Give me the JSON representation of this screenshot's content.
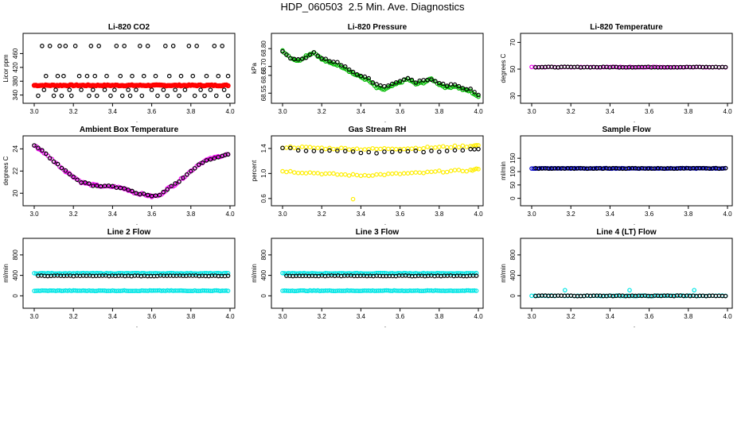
{
  "page_title": "HDP_060503  2.5 Min. Ave. Diagnostics",
  "chart_data": [
    {
      "type": "scatter",
      "title": "Li-820 CO2",
      "ylabel": "Licor ppm",
      "xlim": [
        3.0,
        4.0
      ],
      "ylim": [
        330,
        500
      ],
      "xticks": [
        "3.0",
        "3.2",
        "3.4",
        "3.6",
        "3.8",
        "4.0"
      ],
      "yticks": [
        "340",
        "380",
        "420",
        "460"
      ],
      "ytick_values": [
        340,
        380,
        420,
        460
      ],
      "series": [
        {
          "name": "co2-red",
          "color": "#ff0000",
          "kind": "band",
          "x_start": 3.0,
          "x_end": 3.99,
          "points": 120,
          "base": 368,
          "spread": 3
        },
        {
          "name": "co2-black-high",
          "color": "#000000",
          "kind": "scatter",
          "x": [
            3.04,
            3.08,
            3.13,
            3.16,
            3.21,
            3.29,
            3.33,
            3.42,
            3.46,
            3.54,
            3.58,
            3.67,
            3.71,
            3.79,
            3.83,
            3.92,
            3.96
          ],
          "y": [
            482,
            482,
            482,
            482,
            482,
            482,
            482,
            482,
            482,
            482,
            482,
            482,
            482,
            482,
            482,
            482,
            482
          ]
        },
        {
          "name": "co2-black-mid",
          "color": "#000000",
          "kind": "scatter",
          "x": [
            3.06,
            3.12,
            3.15,
            3.23,
            3.27,
            3.31,
            3.37,
            3.44,
            3.5,
            3.56,
            3.62,
            3.69,
            3.75,
            3.81,
            3.88,
            3.94,
            3.99
          ],
          "y": [
            395,
            395,
            395,
            395,
            395,
            395,
            395,
            395,
            395,
            395,
            395,
            395,
            395,
            395,
            395,
            395,
            395
          ]
        },
        {
          "name": "co2-black-lowmid",
          "color": "#000000",
          "kind": "scatter",
          "x": [
            3.05,
            3.11,
            3.18,
            3.24,
            3.3,
            3.36,
            3.41,
            3.48,
            3.52,
            3.6,
            3.66,
            3.72,
            3.77,
            3.85,
            3.9,
            3.97
          ],
          "y": [
            355,
            355,
            355,
            355,
            355,
            355,
            355,
            355,
            355,
            355,
            355,
            355,
            355,
            355,
            355,
            355
          ]
        },
        {
          "name": "co2-black-low",
          "color": "#000000",
          "kind": "scatter",
          "x": [
            3.02,
            3.1,
            3.14,
            3.19,
            3.28,
            3.32,
            3.39,
            3.45,
            3.49,
            3.55,
            3.63,
            3.68,
            3.74,
            3.82,
            3.87,
            3.93,
            3.99
          ],
          "y": [
            338,
            338,
            338,
            338,
            338,
            338,
            338,
            338,
            338,
            338,
            338,
            338,
            338,
            338,
            338,
            338,
            338
          ]
        }
      ]
    },
    {
      "type": "scatter",
      "title": "Li-820 Pressure",
      "ylabel": "kPa",
      "xlim": [
        3.0,
        4.0
      ],
      "ylim": [
        68.52,
        68.85
      ],
      "xticks": [
        "3.0",
        "3.2",
        "3.4",
        "3.6",
        "3.8",
        "4.0"
      ],
      "yticks": [
        "68.55",
        "68.65",
        "68.70",
        "68.80"
      ],
      "ytick_values": [
        68.55,
        68.65,
        68.7,
        68.8
      ],
      "series": [
        {
          "name": "pressure-green",
          "color": "#00bb00",
          "kind": "trend",
          "x": [
            3.0,
            3.04,
            3.08,
            3.12,
            3.16,
            3.2,
            3.24,
            3.28,
            3.32,
            3.36,
            3.4,
            3.44,
            3.48,
            3.52,
            3.56,
            3.6,
            3.64,
            3.68,
            3.72,
            3.76,
            3.8,
            3.84,
            3.88,
            3.92,
            3.96,
            4.0
          ],
          "y": [
            68.79,
            68.75,
            68.73,
            68.76,
            68.78,
            68.74,
            68.72,
            68.71,
            68.69,
            68.66,
            68.64,
            68.62,
            68.58,
            68.57,
            68.59,
            68.61,
            68.63,
            68.6,
            68.61,
            68.63,
            68.6,
            68.58,
            68.59,
            68.57,
            68.56,
            68.53
          ]
        },
        {
          "name": "pressure-black",
          "color": "#000000",
          "kind": "trend",
          "x": [
            3.0,
            3.04,
            3.08,
            3.12,
            3.16,
            3.2,
            3.24,
            3.28,
            3.32,
            3.36,
            3.4,
            3.44,
            3.48,
            3.52,
            3.56,
            3.6,
            3.64,
            3.68,
            3.72,
            3.76,
            3.8,
            3.84,
            3.88,
            3.92,
            3.96,
            4.0
          ],
          "y": [
            68.78,
            68.75,
            68.74,
            68.75,
            68.78,
            68.75,
            68.73,
            68.72,
            68.7,
            68.67,
            68.65,
            68.63,
            68.6,
            68.59,
            68.6,
            68.62,
            68.63,
            68.61,
            68.62,
            68.63,
            68.61,
            68.59,
            68.6,
            68.58,
            68.57,
            68.54
          ]
        }
      ]
    },
    {
      "type": "scatter",
      "title": "Li-820 Temperature",
      "ylabel": "degrees C",
      "xlim": [
        3.0,
        4.0
      ],
      "ylim": [
        28,
        72
      ],
      "xticks": [
        "3.0",
        "3.2",
        "3.4",
        "3.6",
        "3.8",
        "4.0"
      ],
      "yticks": [
        "30",
        "50",
        "70"
      ],
      "ytick_values": [
        30,
        50,
        70
      ],
      "series": [
        {
          "name": "licor-temp-magenta",
          "color": "#ee00ee",
          "kind": "flat",
          "x_start": 3.0,
          "x_end": 3.99,
          "points": 60,
          "value": 51.5
        },
        {
          "name": "licor-temp-black",
          "color": "#000000",
          "kind": "flat",
          "x_start": 3.02,
          "x_end": 3.99,
          "points": 60,
          "value": 51.5
        }
      ]
    },
    {
      "type": "scatter",
      "title": "Ambient Box Temperature",
      "ylabel": "degrees C",
      "xlim": [
        3.0,
        4.0
      ],
      "ylim": [
        19.3,
        24.6
      ],
      "xticks": [
        "3.0",
        "3.2",
        "3.4",
        "3.6",
        "3.8",
        "4.0"
      ],
      "yticks": [
        "20",
        "22",
        "24"
      ],
      "ytick_values": [
        20,
        22,
        24
      ],
      "series": [
        {
          "name": "box-temp-magenta",
          "color": "#ee00ee",
          "kind": "trend",
          "x": [
            3.0,
            3.04,
            3.08,
            3.12,
            3.16,
            3.2,
            3.24,
            3.28,
            3.32,
            3.36,
            3.4,
            3.44,
            3.48,
            3.52,
            3.56,
            3.6,
            3.64,
            3.68,
            3.72,
            3.76,
            3.8,
            3.84,
            3.88,
            3.92,
            3.96,
            3.99
          ],
          "y": [
            24.3,
            23.8,
            23.2,
            22.6,
            22.0,
            21.5,
            21.0,
            20.8,
            20.7,
            20.6,
            20.6,
            20.5,
            20.3,
            20.0,
            19.9,
            19.7,
            19.8,
            20.4,
            20.8,
            21.4,
            22.0,
            22.6,
            23.0,
            23.2,
            23.4,
            23.5
          ]
        },
        {
          "name": "box-temp-black",
          "color": "#000000",
          "kind": "trend",
          "x": [
            3.0,
            3.04,
            3.08,
            3.12,
            3.16,
            3.2,
            3.24,
            3.28,
            3.32,
            3.36,
            3.4,
            3.44,
            3.48,
            3.52,
            3.56,
            3.6,
            3.64,
            3.68,
            3.72,
            3.76,
            3.8,
            3.84,
            3.88,
            3.92,
            3.96,
            3.99
          ],
          "y": [
            24.3,
            23.8,
            23.2,
            22.6,
            22.0,
            21.5,
            21.0,
            20.8,
            20.7,
            20.6,
            20.6,
            20.5,
            20.3,
            20.0,
            19.9,
            19.7,
            19.8,
            20.4,
            20.8,
            21.4,
            22.0,
            22.6,
            23.0,
            23.2,
            23.4,
            23.5
          ]
        }
      ]
    },
    {
      "type": "scatter",
      "title": "Gas Stream RH",
      "ylabel": "percent",
      "xlim": [
        3.0,
        4.0
      ],
      "ylim": [
        0.56,
        1.5
      ],
      "xticks": [
        "3.0",
        "3.2",
        "3.4",
        "3.6",
        "3.8",
        "4.0"
      ],
      "yticks": [
        "0.6",
        "1.0",
        "1.4"
      ],
      "ytick_values": [
        0.6,
        1.0,
        1.4
      ],
      "series": [
        {
          "name": "rh-yellow-low",
          "color": "#ffee00",
          "kind": "trend",
          "x": [
            3.0,
            3.08,
            3.16,
            3.24,
            3.32,
            3.4,
            3.48,
            3.56,
            3.64,
            3.72,
            3.8,
            3.88,
            3.96,
            4.0
          ],
          "y": [
            1.04,
            1.02,
            1.01,
            0.99,
            0.98,
            0.97,
            0.98,
            0.99,
            1.0,
            1.01,
            1.03,
            1.04,
            1.05,
            1.07
          ]
        },
        {
          "name": "rh-yellow-high",
          "color": "#ffee00",
          "kind": "trend",
          "x": [
            3.0,
            3.08,
            3.16,
            3.24,
            3.32,
            3.4,
            3.48,
            3.56,
            3.64,
            3.72,
            3.8,
            3.88,
            3.96,
            4.0
          ],
          "y": [
            1.42,
            1.42,
            1.41,
            1.4,
            1.4,
            1.39,
            1.39,
            1.4,
            1.4,
            1.41,
            1.42,
            1.43,
            1.44,
            1.45
          ]
        },
        {
          "name": "rh-black",
          "color": "#000000",
          "kind": "trend",
          "x": [
            3.0,
            3.08,
            3.16,
            3.24,
            3.32,
            3.4,
            3.48,
            3.56,
            3.64,
            3.72,
            3.8,
            3.88,
            3.96,
            4.0
          ],
          "y": [
            1.41,
            1.38,
            1.36,
            1.36,
            1.35,
            1.34,
            1.33,
            1.34,
            1.35,
            1.35,
            1.36,
            1.37,
            1.38,
            1.39
          ]
        },
        {
          "name": "rh-yellow-outlier",
          "color": "#ffee00",
          "kind": "scatter",
          "x": [
            3.36
          ],
          "y": [
            0.59
          ]
        }
      ]
    },
    {
      "type": "scatter",
      "title": "Sample Flow",
      "ylabel": "ml/min",
      "xlim": [
        3.0,
        4.0
      ],
      "ylim": [
        -10,
        210
      ],
      "xticks": [
        "3.0",
        "3.2",
        "3.4",
        "3.6",
        "3.8",
        "4.0"
      ],
      "yticks": [
        "0",
        "50",
        "100",
        "150"
      ],
      "ytick_values": [
        0,
        50,
        100,
        150
      ],
      "series": [
        {
          "name": "sample-flow-blue",
          "color": "#0000cc",
          "kind": "flat",
          "x_start": 3.0,
          "x_end": 3.99,
          "points": 100,
          "value": 112
        },
        {
          "name": "sample-flow-black",
          "color": "#000000",
          "kind": "flat",
          "x_start": 3.02,
          "x_end": 3.99,
          "points": 60,
          "value": 112
        }
      ]
    },
    {
      "type": "scatter",
      "title": "Line 2 Flow",
      "ylabel": "ml/min",
      "xlim": [
        3.0,
        4.0
      ],
      "ylim": [
        -150,
        1000
      ],
      "xticks": [
        "3.0",
        "3.2",
        "3.4",
        "3.6",
        "3.8",
        "4.0"
      ],
      "yticks": [
        "0",
        "400",
        "800"
      ],
      "ytick_values": [
        0,
        400,
        800
      ],
      "series": [
        {
          "name": "line2-cyan-high",
          "color": "#00e5e5",
          "kind": "flat",
          "x_start": 3.0,
          "x_end": 3.99,
          "points": 100,
          "value": 440
        },
        {
          "name": "line2-cyan-low",
          "color": "#00e5e5",
          "kind": "flat",
          "x_start": 3.0,
          "x_end": 3.99,
          "points": 100,
          "value": 100
        },
        {
          "name": "line2-black",
          "color": "#000000",
          "kind": "flat",
          "x_start": 3.02,
          "x_end": 3.99,
          "points": 60,
          "value": 390
        }
      ]
    },
    {
      "type": "scatter",
      "title": "Line 3 Flow",
      "ylabel": "ml/min",
      "xlim": [
        3.0,
        4.0
      ],
      "ylim": [
        -150,
        1000
      ],
      "xticks": [
        "3.0",
        "3.2",
        "3.4",
        "3.6",
        "3.8",
        "4.0"
      ],
      "yticks": [
        "0",
        "400",
        "800"
      ],
      "ytick_values": [
        0,
        400,
        800
      ],
      "series": [
        {
          "name": "line3-cyan-high",
          "color": "#00e5e5",
          "kind": "flat",
          "x_start": 3.0,
          "x_end": 3.99,
          "points": 100,
          "value": 440
        },
        {
          "name": "line3-cyan-low",
          "color": "#00e5e5",
          "kind": "flat",
          "x_start": 3.0,
          "x_end": 3.99,
          "points": 100,
          "value": 100
        },
        {
          "name": "line3-black",
          "color": "#000000",
          "kind": "flat",
          "x_start": 3.02,
          "x_end": 3.99,
          "points": 60,
          "value": 390
        }
      ]
    },
    {
      "type": "scatter",
      "title": "Line 4 (LT) Flow",
      "ylabel": "ml/min",
      "xlim": [
        3.0,
        4.0
      ],
      "ylim": [
        -150,
        1000
      ],
      "xticks": [
        "3.0",
        "3.2",
        "3.4",
        "3.6",
        "3.8",
        "4.0"
      ],
      "yticks": [
        "0",
        "400",
        "800"
      ],
      "ytick_values": [
        0,
        400,
        800
      ],
      "series": [
        {
          "name": "line4-cyan",
          "color": "#00e5e5",
          "kind": "flat",
          "x_start": 3.0,
          "x_end": 3.99,
          "points": 60,
          "value": 0
        },
        {
          "name": "line4-black",
          "color": "#000000",
          "kind": "flat",
          "x_start": 3.02,
          "x_end": 3.99,
          "points": 60,
          "value": 0
        },
        {
          "name": "line4-cyan-spikes",
          "color": "#00e5e5",
          "kind": "scatter",
          "x": [
            3.17,
            3.5,
            3.83
          ],
          "y": [
            110,
            110,
            110
          ]
        }
      ]
    }
  ]
}
